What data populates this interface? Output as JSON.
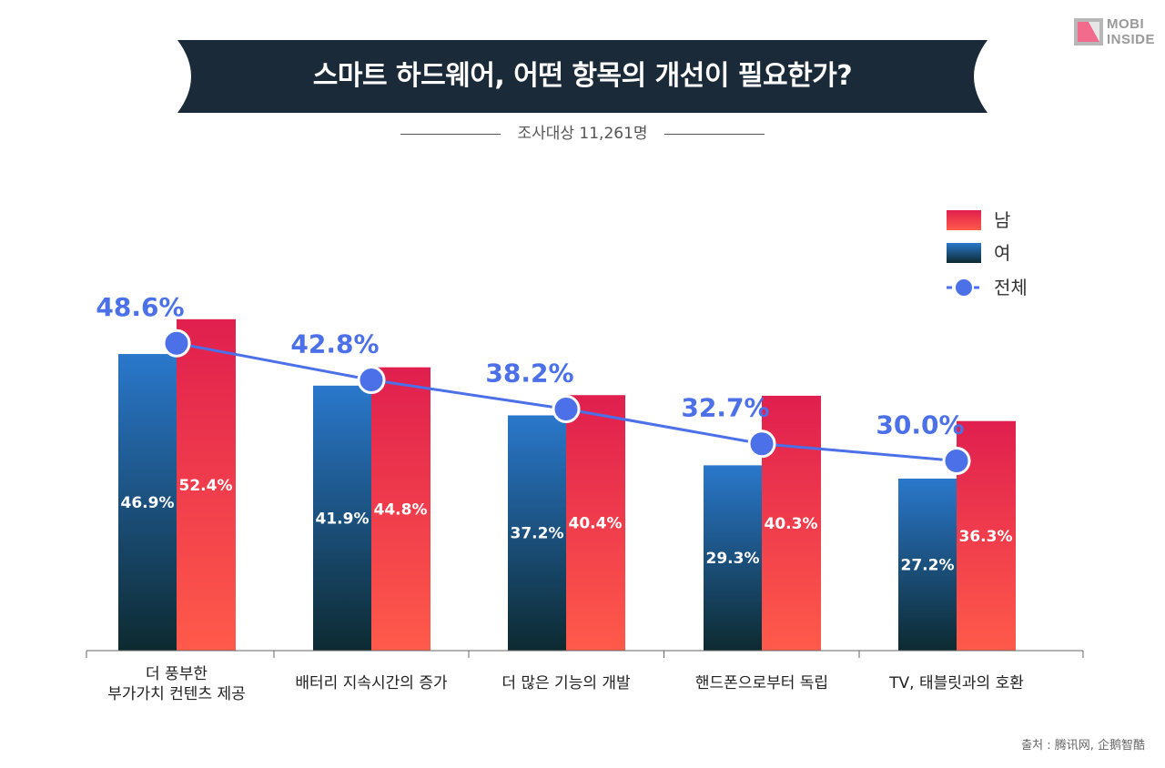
{
  "logo": {
    "line1": "MOBI",
    "line2": "INSIDE"
  },
  "title": "스마트 하드웨어, 어떤 항목의 개선이 필요한가?",
  "subtitle": "조사대상 11,261명",
  "legend": {
    "male": "남",
    "female": "여",
    "total": "전체"
  },
  "colors": {
    "banner": "#1b2a38",
    "male_top": "#e01f4e",
    "male_bottom": "#ff5a4a",
    "female_top": "#2a78cc",
    "female_bottom": "#0d2a30",
    "total": "#4b70e8"
  },
  "chart_data": {
    "type": "bar",
    "categories": [
      "더 풍부한\n부가가치 컨텐츠 제공",
      "배터리 지속시간의 증가",
      "더 많은 기능의 개발",
      "핸드폰으로부터 독립",
      "TV, 태블릿과의 호환"
    ],
    "series": [
      {
        "name": "여",
        "values": [
          46.9,
          41.9,
          37.2,
          29.3,
          27.2
        ],
        "labels": [
          "46.9%",
          "41.9%",
          "37.2%",
          "29.3%",
          "27.2%"
        ]
      },
      {
        "name": "남",
        "values": [
          52.4,
          44.8,
          40.4,
          40.3,
          36.3
        ],
        "labels": [
          "52.4%",
          "44.8%",
          "40.4%",
          "40.3%",
          "36.3%"
        ]
      },
      {
        "name": "전체",
        "type": "line",
        "values": [
          48.6,
          42.8,
          38.2,
          32.7,
          30.0
        ],
        "labels": [
          "48.6%",
          "42.8%",
          "38.2%",
          "32.7%",
          "30.0%"
        ]
      }
    ],
    "ylim": [
      0,
      100
    ],
    "grid": false,
    "legend_position": "top-right"
  },
  "source": "출처 :  腾讯网, 企鹅智酷"
}
